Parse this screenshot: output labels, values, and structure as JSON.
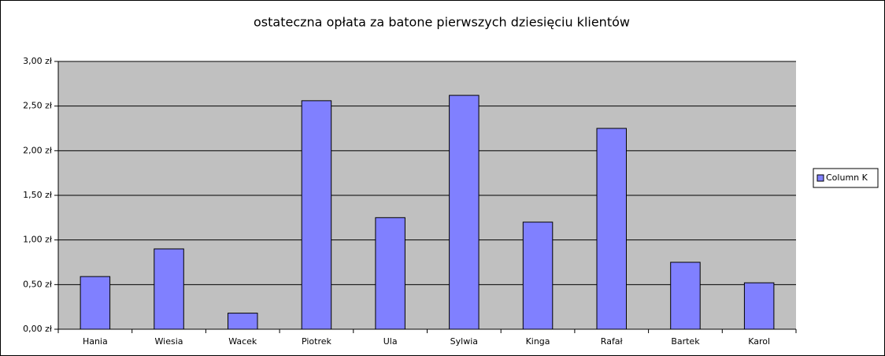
{
  "chart_data": {
    "type": "bar",
    "title": "ostateczna opłata za batone pierwszych dziesięciu klientów",
    "categories": [
      "Hania",
      "Wiesia",
      "Wacek",
      "Piotrek",
      "Ula",
      "Sylwia",
      "Kinga",
      "Rafał",
      "Bartek",
      "Karol"
    ],
    "series": [
      {
        "name": "Column K",
        "color": "#8080ff",
        "values": [
          0.59,
          0.9,
          0.18,
          2.56,
          1.25,
          2.62,
          1.2,
          2.25,
          0.75,
          0.52
        ]
      }
    ],
    "ylim": [
      0,
      3
    ],
    "yticks": [
      {
        "value": 0,
        "label": "0,00 zł"
      },
      {
        "value": 0.5,
        "label": "0,50 zł"
      },
      {
        "value": 1,
        "label": "1,00 zł"
      },
      {
        "value": 1.5,
        "label": "1,50 zł"
      },
      {
        "value": 2,
        "label": "2,00 zł"
      },
      {
        "value": 2.5,
        "label": "2,50 zł"
      },
      {
        "value": 3,
        "label": "3,00 zł"
      }
    ],
    "grid": true,
    "legend": "right"
  }
}
